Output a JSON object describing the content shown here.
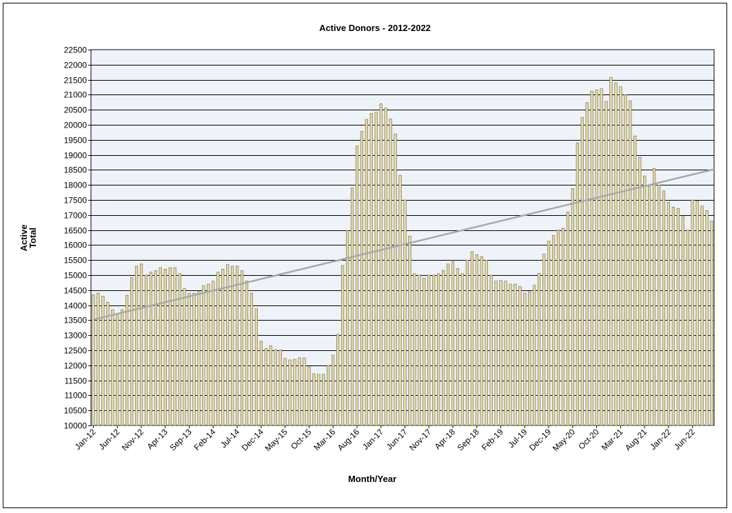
{
  "chart_data": {
    "type": "bar",
    "title": "Active Donors - 2012-2022",
    "xlabel": "Month/Year",
    "ylabel_lines": [
      "Active",
      "Total"
    ],
    "ylim": [
      10000,
      22500
    ],
    "ytick_step": 500,
    "grid": true,
    "trendline": {
      "type": "linear",
      "start": 13520,
      "end": 18520
    },
    "start_month": "Jan-12",
    "tick_labels": [
      "Jan-12",
      "Jun-12",
      "Nov-12",
      "Apr-13",
      "Sep-13",
      "Feb-14",
      "Jul-14",
      "Dec-14",
      "May-15",
      "Oct-15",
      "Mar-16",
      "Aug-16",
      "Jan-17",
      "Jun-17",
      "Nov-17",
      "Apr-18",
      "Sep-18",
      "Feb-19",
      "Jul-19",
      "Dec-19",
      "May-20",
      "Oct-20",
      "Mar-21",
      "Aug-21",
      "Jan-22",
      "Jun-22"
    ],
    "label_interval": 5,
    "values": [
      14350,
      14400,
      14300,
      14100,
      13850,
      13700,
      13850,
      14330,
      14920,
      15300,
      15370,
      15000,
      15100,
      15150,
      15250,
      15200,
      15250,
      15250,
      15050,
      14550,
      14400,
      14400,
      14450,
      14650,
      14700,
      14800,
      15100,
      15200,
      15350,
      15300,
      15300,
      15150,
      14800,
      14400,
      13880,
      12800,
      12560,
      12650,
      12520,
      12520,
      12230,
      12180,
      12200,
      12250,
      12250,
      11950,
      11720,
      11700,
      11700,
      12000,
      12340,
      13030,
      15320,
      16480,
      17900,
      19300,
      19780,
      20180,
      20380,
      20420,
      20700,
      20560,
      20200,
      19700,
      18320,
      17500,
      16300,
      15050,
      15000,
      14900,
      15000,
      15000,
      15050,
      15160,
      15370,
      15450,
      15220,
      15050,
      15500,
      15780,
      15680,
      15620,
      15500,
      15000,
      14800,
      14820,
      14800,
      14700,
      14700,
      14620,
      14400,
      14450,
      14660,
      15060,
      15700,
      16130,
      16320,
      16500,
      16560,
      17100,
      17880,
      19400,
      20250,
      20740,
      21120,
      21160,
      21200,
      20780,
      21580,
      21400,
      21270,
      21000,
      20800,
      19630,
      18920,
      18300,
      17950,
      18550,
      18000,
      17800,
      17420,
      17260,
      17220,
      16970,
      16500,
      17500,
      17460,
      17300,
      17150,
      16800
    ],
    "bar_color": "#e4d9a5",
    "bar_edge_color": "#6f6545",
    "plot_bg": "#eef3f9",
    "trend_color": "#a8a8a8"
  }
}
